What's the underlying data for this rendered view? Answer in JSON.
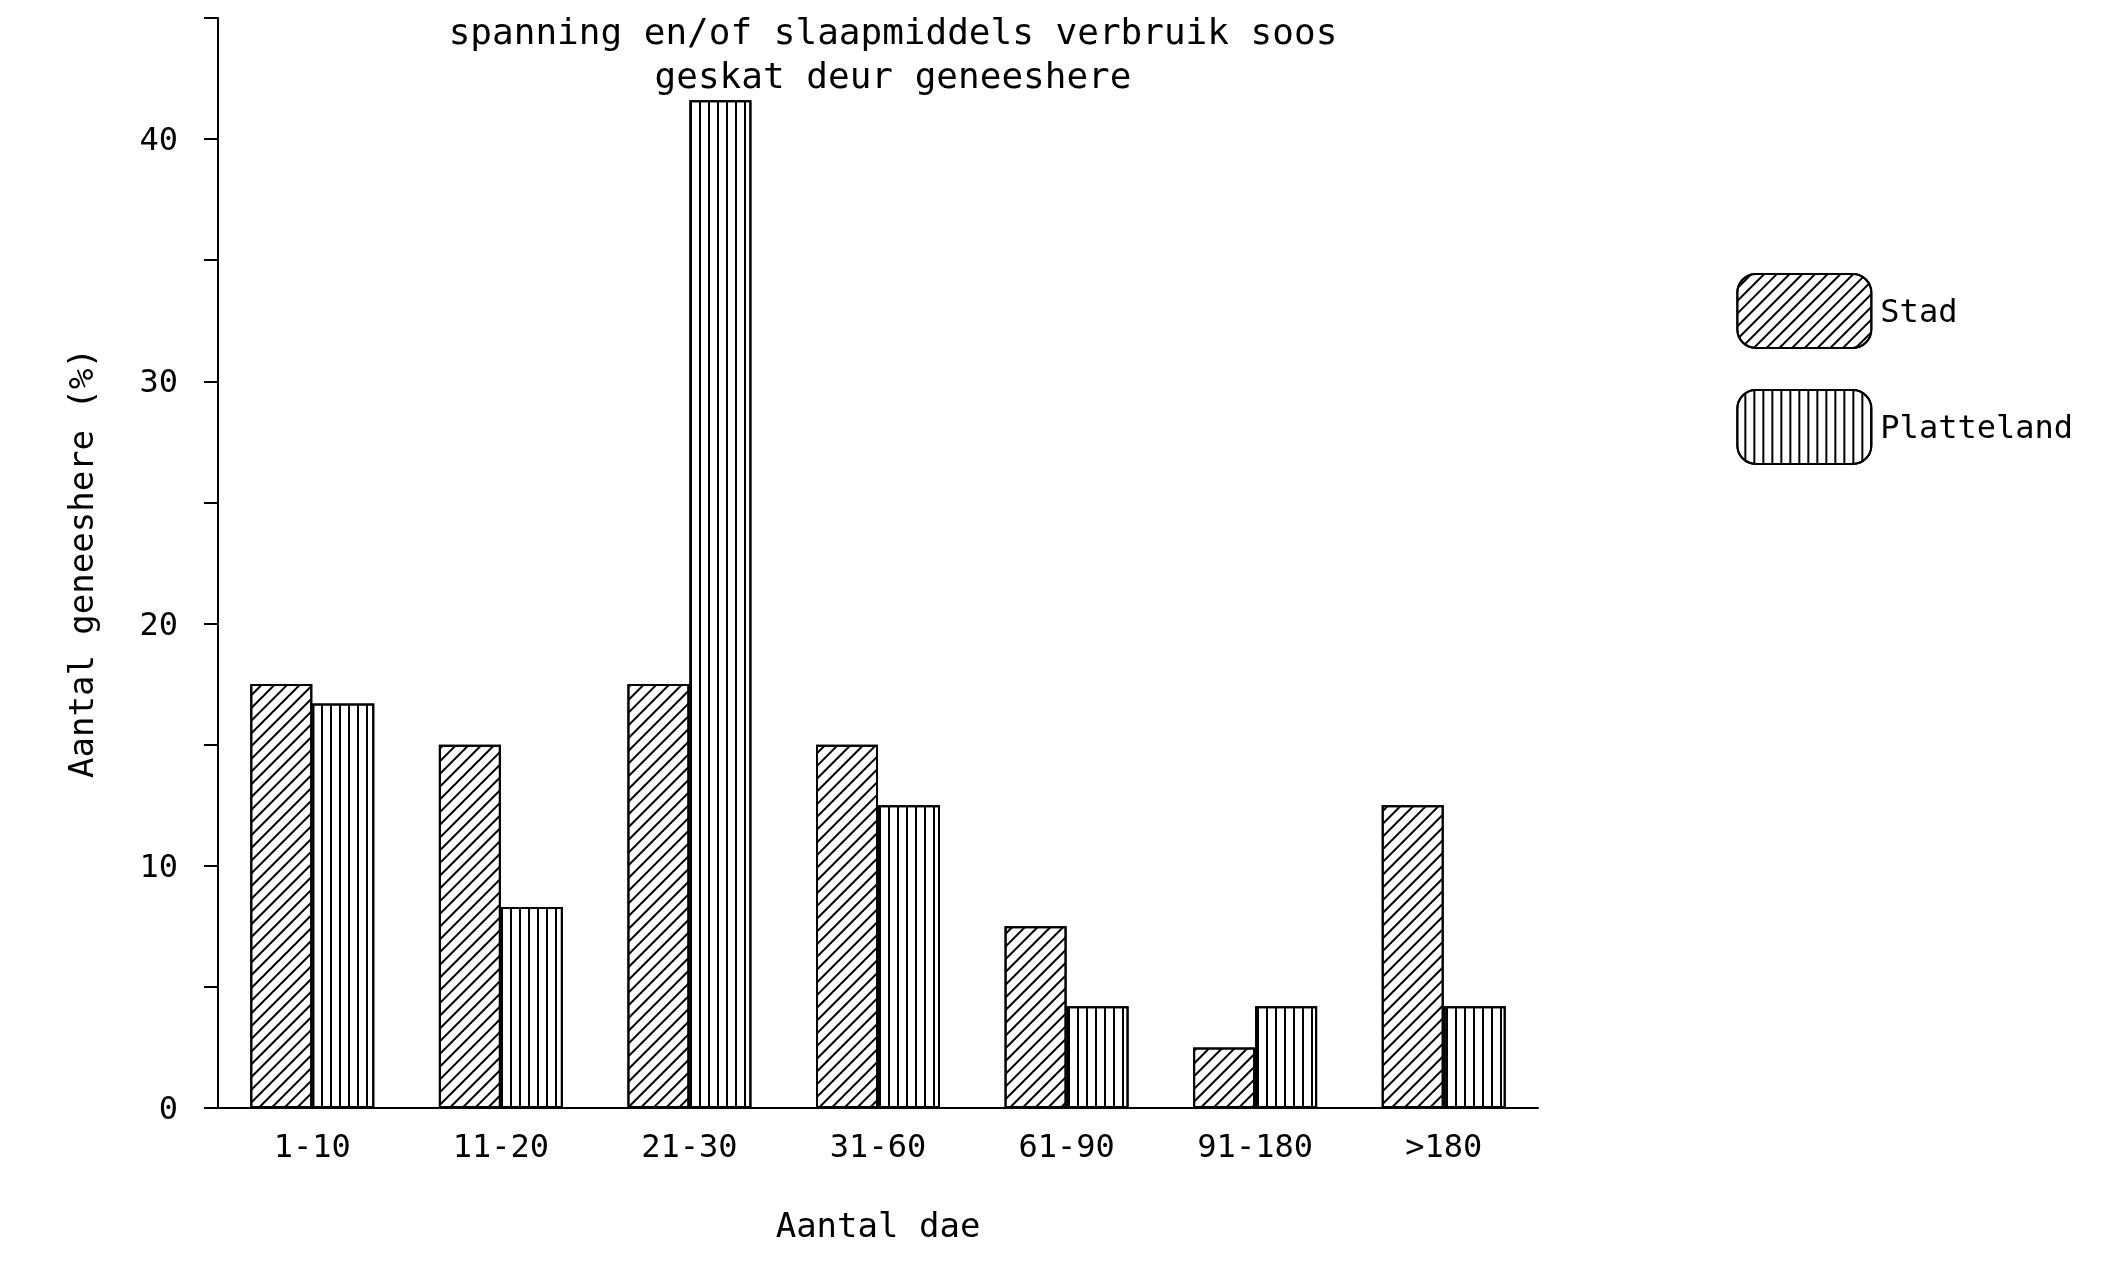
{
  "chart_data": {
    "type": "bar",
    "title": "spanning en/of slaapmiddels verbruik soos\ngeskat deur geneeshere",
    "xlabel": "Aantal dae",
    "ylabel": "Aantal geneeshere (%)",
    "categories": [
      "1-10",
      "11-20",
      "21-30",
      "31-60",
      "61-90",
      "91-180",
      ">180"
    ],
    "series": [
      {
        "name": "Stad",
        "color": "#ffffff",
        "values": [
          17.5,
          15,
          17.5,
          15,
          7.5,
          2.5,
          12.5
        ]
      },
      {
        "name": "Platteland",
        "color": "#ffffff",
        "values": [
          16.7,
          8.3,
          41.6,
          12.5,
          4.2,
          4.2,
          4.2
        ]
      }
    ],
    "ylim": [
      0,
      45
    ],
    "yticks": [
      0,
      {
        "value": 5,
        "label": null
      },
      10,
      {
        "value": 15,
        "label": null
      },
      20,
      {
        "value": 25,
        "label": null
      },
      30,
      {
        "value": 35,
        "label": null
      },
      40,
      {
        "value": 45,
        "label": null
      }
    ],
    "grid": false,
    "legend": "right"
  }
}
